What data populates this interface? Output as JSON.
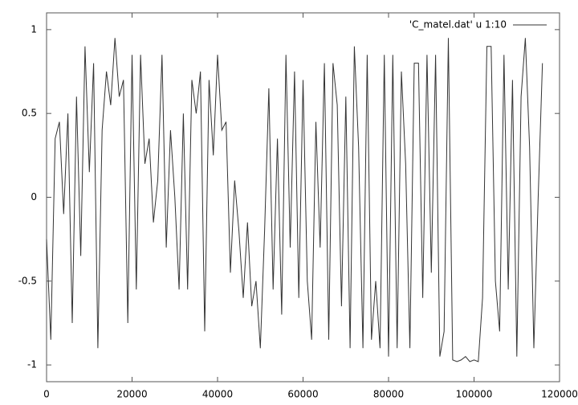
{
  "chart_data": {
    "type": "line",
    "x": [
      0,
      1000,
      2000,
      3000,
      4000,
      5000,
      6000,
      7000,
      8000,
      9000,
      10000,
      11000,
      12000,
      13000,
      14000,
      15000,
      16000,
      17000,
      18000,
      19000,
      20000,
      21000,
      22000,
      23000,
      24000,
      25000,
      26000,
      27000,
      28000,
      29000,
      30000,
      31000,
      32000,
      33000,
      34000,
      35000,
      36000,
      37000,
      38000,
      39000,
      40000,
      41000,
      42000,
      43000,
      44000,
      45000,
      46000,
      47000,
      48000,
      49000,
      50000,
      51000,
      52000,
      53000,
      54000,
      55000,
      56000,
      57000,
      58000,
      59000,
      60000,
      61000,
      62000,
      63000,
      64000,
      65000,
      66000,
      67000,
      68000,
      69000,
      70000,
      71000,
      72000,
      73000,
      74000,
      75000,
      76000,
      77000,
      78000,
      79000,
      80000,
      81000,
      82000,
      83000,
      84000,
      85000,
      86000,
      87000,
      88000,
      89000,
      90000,
      91000,
      92000,
      93000,
      94000,
      95000,
      96000,
      97000,
      98000,
      99000,
      100000,
      101000,
      102000,
      103000,
      104000,
      105000,
      106000,
      107000,
      108000,
      109000,
      110000,
      111000,
      112000,
      113000,
      114000,
      115000,
      116000
    ],
    "series": [
      {
        "name": "'C_matel.dat' u 1:10",
        "color": "#333333",
        "values": [
          -0.25,
          -0.85,
          0.35,
          0.45,
          -0.1,
          0.5,
          -0.75,
          0.6,
          -0.35,
          0.9,
          0.15,
          0.8,
          -0.9,
          0.4,
          0.75,
          0.55,
          0.95,
          0.6,
          0.7,
          -0.75,
          0.85,
          -0.55,
          0.85,
          0.2,
          0.35,
          -0.15,
          0.1,
          0.85,
          -0.3,
          0.4,
          0.0,
          -0.55,
          0.5,
          -0.55,
          0.7,
          0.5,
          0.75,
          -0.8,
          0.7,
          0.25,
          0.85,
          0.4,
          0.45,
          -0.45,
          0.1,
          -0.2,
          -0.6,
          -0.15,
          -0.65,
          -0.5,
          -0.9,
          -0.2,
          0.65,
          -0.55,
          0.35,
          -0.7,
          0.85,
          -0.3,
          0.75,
          -0.6,
          0.7,
          -0.5,
          -0.85,
          0.45,
          -0.3,
          0.8,
          -0.85,
          0.8,
          0.55,
          -0.65,
          0.6,
          -0.9,
          0.9,
          0.3,
          -0.9,
          0.85,
          -0.85,
          -0.5,
          -0.9,
          0.85,
          -0.95,
          0.85,
          -0.9,
          0.75,
          0.2,
          -0.9,
          0.8,
          0.8,
          -0.6,
          0.85,
          -0.45,
          0.85,
          -0.95,
          -0.8,
          0.95,
          -0.97,
          -0.98,
          -0.97,
          -0.95,
          -0.98,
          -0.97,
          -0.98,
          -0.6,
          0.9,
          0.9,
          -0.5,
          -0.8,
          0.85,
          -0.55,
          0.7,
          -0.95,
          0.6,
          0.95,
          0.3,
          -0.9,
          0.0,
          0.8
        ]
      }
    ],
    "xlim": [
      0,
      120000
    ],
    "xticks": [
      0,
      20000,
      40000,
      60000,
      80000,
      100000,
      120000
    ],
    "ylim": [
      -1.1,
      1.1
    ],
    "yticks": [
      -1,
      -0.5,
      0,
      0.5,
      1
    ],
    "legend": "top-right"
  }
}
